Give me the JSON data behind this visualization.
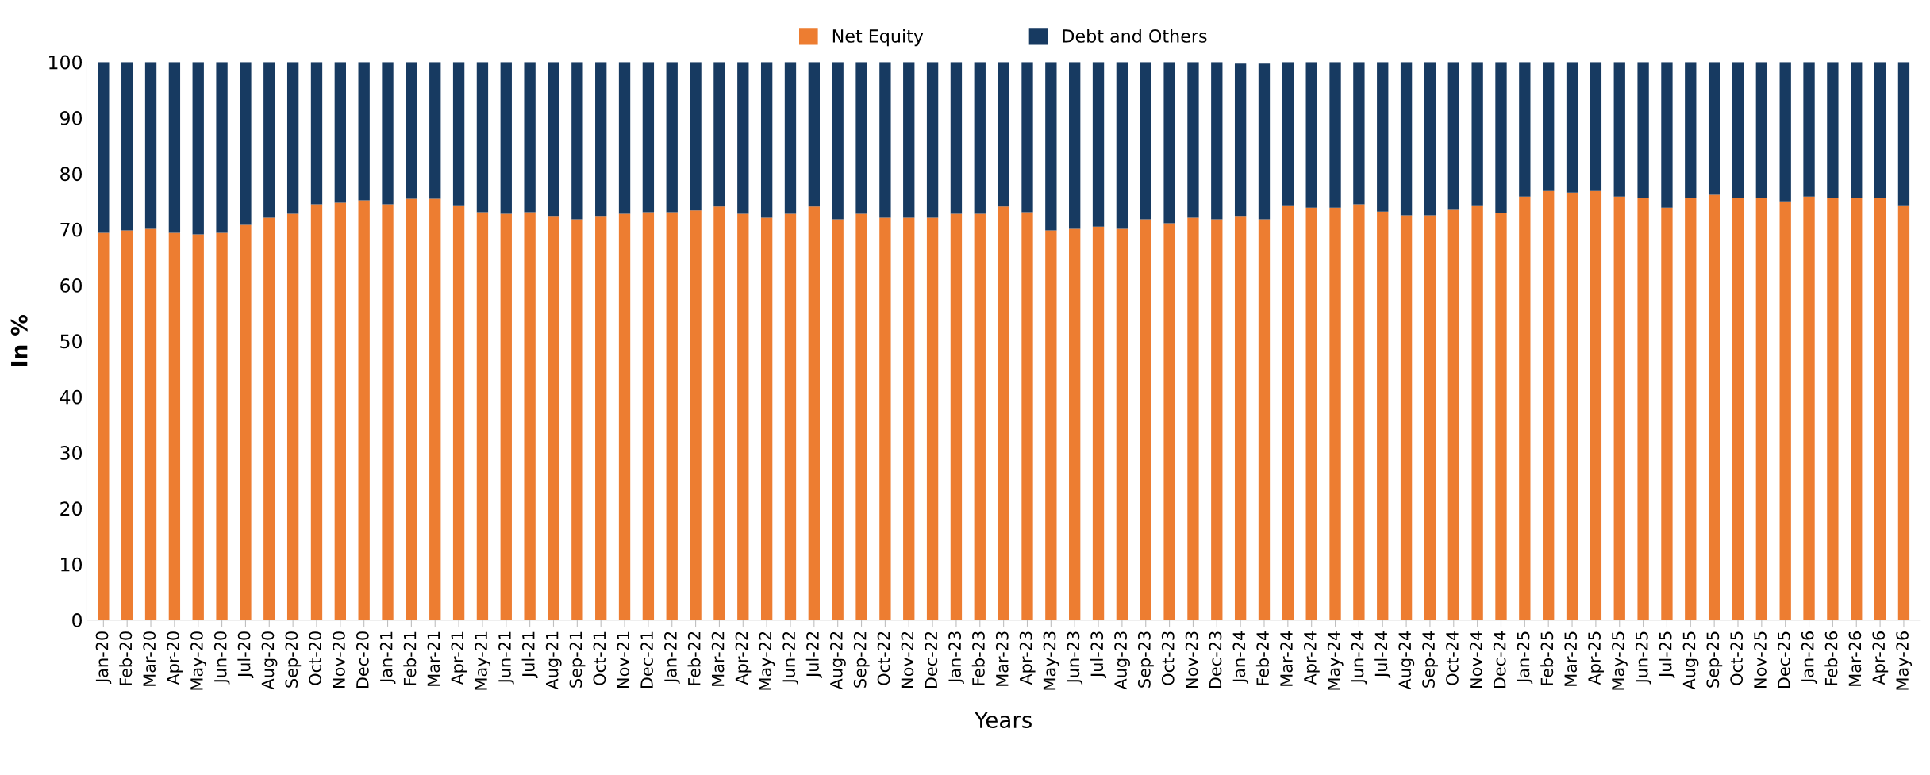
{
  "chart_data": {
    "type": "bar",
    "stacked": true,
    "xlabel": "Years",
    "ylabel": "In %",
    "categories": [
      "Jan-20",
      "Feb-20",
      "Mar-20",
      "Apr-20",
      "May-20",
      "Jun-20",
      "Jul-20",
      "Aug-20",
      "Sep-20",
      "Oct-20",
      "Nov-20",
      "Dec-20",
      "Jan-21",
      "Feb-21",
      "Mar-21",
      "Apr-21",
      "May-21",
      "Jun-21",
      "Jul-21",
      "Aug-21",
      "Sep-21",
      "Oct-21",
      "Nov-21",
      "Dec-21",
      "Jan-22",
      "Feb-22",
      "Mar-22",
      "Apr-22",
      "May-22",
      "Jun-22",
      "Jul-22",
      "Aug-22",
      "Sep-22",
      "Oct-22",
      "Nov-22",
      "Dec-22",
      "Jan-23",
      "Feb-23",
      "Mar-23",
      "Apr-23",
      "May-23",
      "Jun-23",
      "Jul-23",
      "Aug-23",
      "Sep-23",
      "Oct-23",
      "Nov-23",
      "Dec-23",
      "Jan-24",
      "Feb-24",
      "Mar-24",
      "Apr-24",
      "May-24",
      "Jun-24",
      "Jul-24",
      "Aug-24",
      "Sep-24",
      "Oct-24",
      "Nov-24",
      "Dec-24",
      "Jan-25",
      "Feb-25",
      "Mar-25",
      "Apr-25",
      "May-25",
      "Jun-25",
      "Jul-25",
      "Aug-25",
      "Sep-25",
      "Oct-25",
      "Nov-25",
      "Dec-25",
      "Jan-26",
      "Feb-26",
      "Mar-26",
      "Apr-26",
      "May-26"
    ],
    "series": [
      {
        "name": "Net Equity",
        "color": "#ed7d31",
        "values": [
          69.4,
          69.8,
          70.1,
          69.4,
          69.1,
          69.4,
          70.8,
          72.1,
          72.8,
          74.5,
          74.8,
          75.2,
          74.5,
          75.5,
          75.5,
          74.2,
          73.1,
          72.8,
          73.1,
          72.4,
          71.8,
          72.4,
          72.8,
          73.1,
          73.1,
          73.4,
          74.1,
          72.8,
          72.1,
          72.8,
          74.1,
          71.8,
          72.8,
          72.1,
          72.1,
          72.1,
          72.8,
          72.8,
          74.1,
          73.1,
          69.8,
          70.1,
          70.5,
          70.1,
          71.8,
          71.1,
          72.1,
          71.8,
          72.4,
          71.8,
          74.2,
          73.9,
          73.9,
          74.5,
          73.2,
          72.5,
          72.5,
          73.5,
          74.2,
          72.9,
          75.9,
          76.9,
          76.6,
          76.9,
          75.9,
          75.6,
          73.9,
          75.6,
          76.2,
          75.6,
          75.6,
          74.9,
          75.9,
          75.6,
          75.6,
          75.6,
          74.2
        ]
      },
      {
        "name": "Debt and Others",
        "color": "#173a61",
        "values": [
          30.6,
          30.2,
          29.9,
          30.6,
          30.9,
          30.6,
          29.2,
          27.9,
          27.2,
          25.5,
          25.2,
          24.8,
          25.5,
          24.5,
          24.5,
          25.8,
          26.9,
          27.2,
          26.9,
          27.6,
          28.2,
          27.6,
          27.2,
          26.9,
          26.9,
          26.6,
          25.9,
          27.2,
          27.9,
          27.2,
          25.9,
          28.2,
          27.2,
          27.9,
          27.9,
          27.9,
          27.2,
          27.2,
          25.9,
          26.9,
          30.2,
          29.9,
          29.5,
          29.9,
          28.2,
          28.9,
          27.9,
          28.2,
          27.3,
          27.9,
          25.8,
          26.1,
          26.1,
          25.5,
          26.8,
          27.5,
          27.5,
          26.5,
          25.8,
          27.1,
          24.1,
          23.1,
          23.4,
          23.1,
          24.1,
          24.4,
          26.1,
          24.4,
          23.8,
          24.4,
          24.4,
          25.1,
          24.1,
          24.4,
          24.4,
          24.4,
          25.8
        ]
      }
    ],
    "ylim": [
      0,
      100
    ],
    "yticks": [
      0,
      10,
      20,
      30,
      40,
      50,
      60,
      70,
      80,
      90,
      100
    ],
    "grid": false,
    "legend": "top"
  }
}
